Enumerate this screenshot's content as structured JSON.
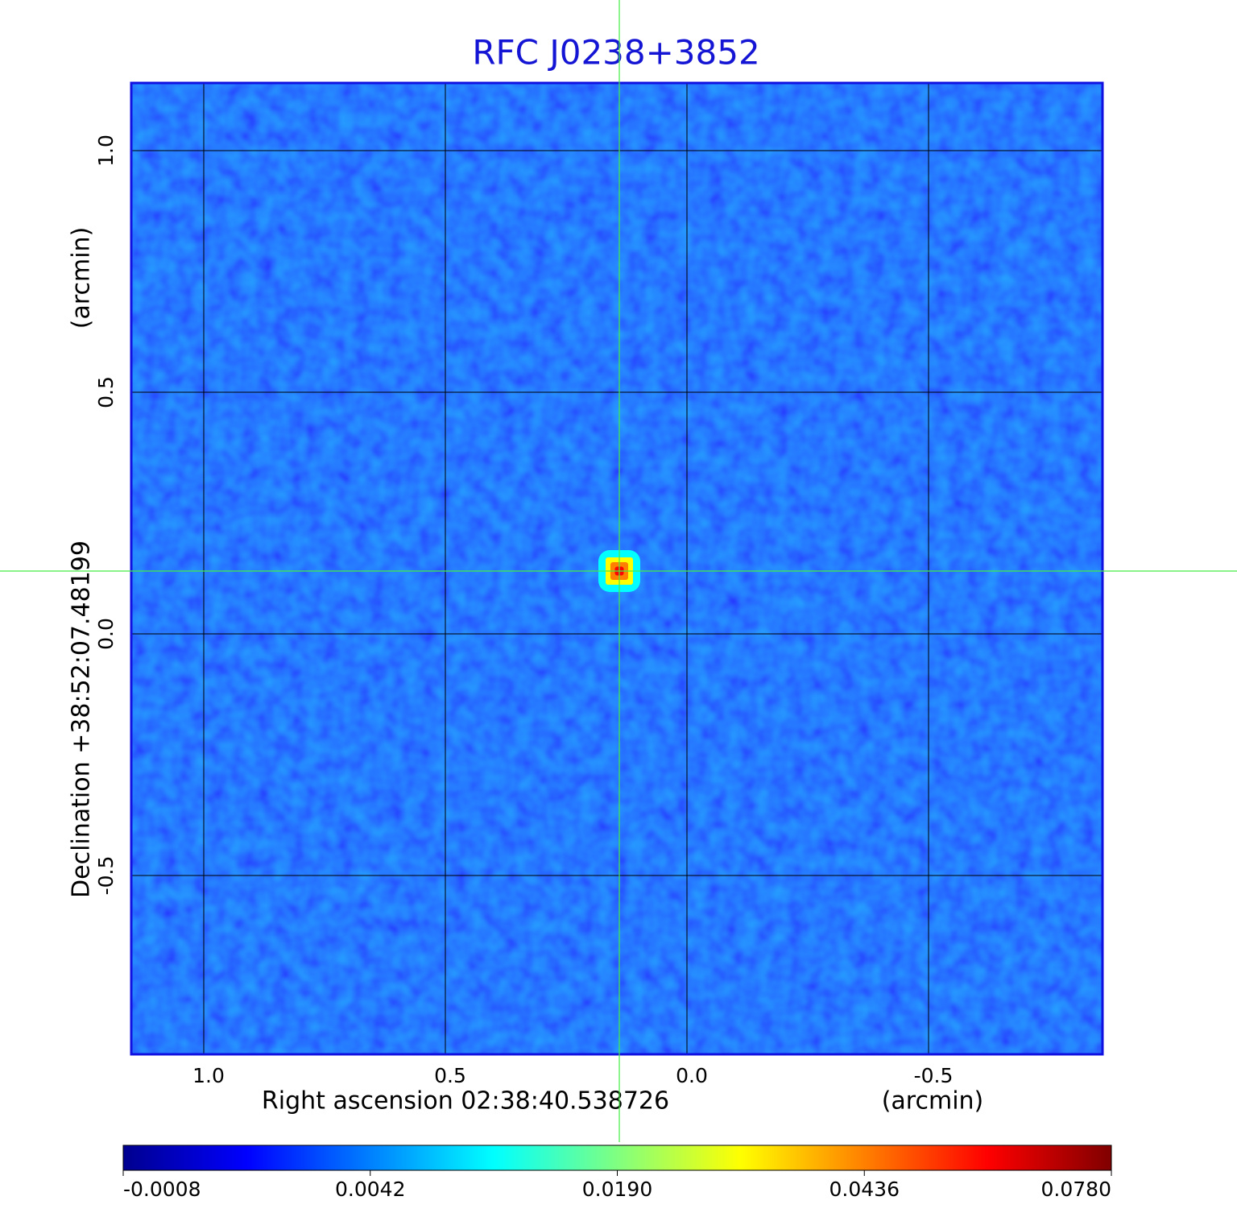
{
  "chart_data": {
    "type": "image",
    "title": "RFC J0238+3852",
    "xlabel": "Right ascension  02:38:40.538726",
    "xunit": "(arcmin)",
    "ylabel": "Declination  +38:52:07.48199",
    "yunit": "(arcmin)",
    "xlim": [
      1.15,
      -0.86
    ],
    "ylim": [
      1.14,
      -0.87
    ],
    "xticks": [
      {
        "value": 1,
        "label": "1.0"
      },
      0.5,
      {
        "value": 0,
        "label": "0.0"
      },
      -0.5
    ],
    "yticks": [
      {
        "value": 1,
        "label": "1.0"
      },
      0.5,
      {
        "value": 0,
        "label": "0.0"
      },
      -0.5
    ],
    "grid": true,
    "source": {
      "x": 0.14,
      "y": 0.13,
      "peak": 0.078
    },
    "colorbar": {
      "ticks": [
        -0.0008,
        0.0042,
        {
          "value": 0.019,
          "label": "0.0190"
        },
        0.0436,
        {
          "value": 0.078,
          "label": "0.0780"
        }
      ],
      "colormap": [
        "#00008f",
        "#0000ff",
        "#0080ff",
        "#00ffff",
        "#80ff80",
        "#ffff00",
        "#ff8000",
        "#ff0000",
        "#800000"
      ]
    }
  }
}
